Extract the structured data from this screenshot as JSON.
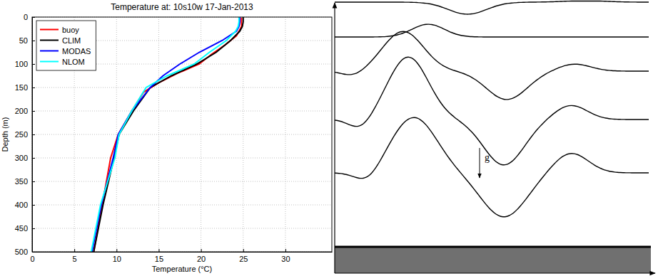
{
  "chart_data": {
    "type": "line",
    "title": "Temperature at: 10s10w  17-Jan-2013",
    "x_label": "Temperature (°C)",
    "y_label": "Depth (m)",
    "xlim": [
      0,
      35.5
    ],
    "xticks": [
      0,
      5,
      10,
      15,
      20,
      25,
      30
    ],
    "ylim": [
      500,
      0
    ],
    "yticks": [
      0,
      50,
      100,
      150,
      200,
      250,
      300,
      350,
      400,
      450,
      500
    ],
    "grid": true,
    "legend": "upper left",
    "line_style": "solid",
    "series": [
      {
        "name": "buoy",
        "color": "#ff0000",
        "x": [
          24.8,
          24.8,
          24.2,
          22.8,
          21.2,
          19.8,
          17.2,
          15.0,
          13.2,
          12.5,
          11.8,
          10.2,
          9.3,
          8.3,
          7.3
        ],
        "values": [
          1,
          20,
          40,
          60,
          80,
          100,
          120,
          140,
          160,
          180,
          200,
          250,
          300,
          400,
          500
        ]
      },
      {
        "name": "CLIM",
        "color": "#000000",
        "x": [
          25.0,
          25.0,
          24.9,
          24.6,
          23.5,
          21.8,
          19.5,
          16.5,
          14.0,
          12.0,
          10.3,
          9.7,
          8.4,
          7.3
        ],
        "values": [
          0,
          10,
          20,
          30,
          50,
          75,
          100,
          125,
          150,
          200,
          250,
          300,
          400,
          500
        ]
      },
      {
        "name": "MODAS",
        "color": "#0000ff",
        "x": [
          24.6,
          24.6,
          24.5,
          24.2,
          22.5,
          19.8,
          17.5,
          15.5,
          14.0,
          11.8,
          10.2,
          9.6,
          8.2,
          7.1
        ],
        "values": [
          0,
          10,
          20,
          30,
          50,
          75,
          100,
          125,
          150,
          200,
          250,
          300,
          400,
          500
        ]
      },
      {
        "name": "NLOM",
        "color": "#00ffff",
        "x": [
          24.5,
          24.5,
          24.4,
          24.1,
          23.0,
          21.0,
          19.2,
          16.0,
          13.5,
          11.8,
          10.3,
          9.8,
          8.1,
          7.0
        ],
        "values": [
          0,
          10,
          20,
          30,
          50,
          75,
          100,
          125,
          150,
          200,
          250,
          300,
          400,
          500
        ]
      }
    ]
  },
  "diagram": {
    "gravity_label": "g"
  }
}
